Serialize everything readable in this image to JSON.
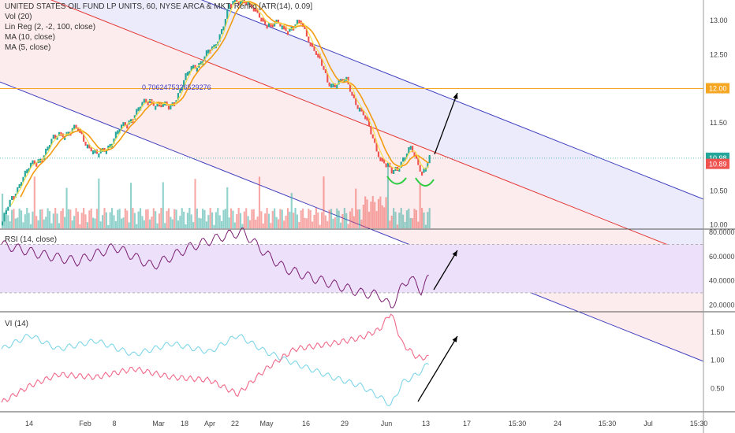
{
  "legend": {
    "title": "UNITED STATES OIL FUND LP UNITS, 60, NYSE ARCA & MKT, Renko [ATR(14), 0.09]",
    "vol": "Vol (20)",
    "linreg": "Lin Reg (2, -2, 100, close)",
    "ma10": "MA (10, close)",
    "ma5": "MA (5, close)",
    "rsi": "RSI (14, close)",
    "vi": "VI (14)"
  },
  "annotation": "0.706247532652927​6",
  "colors": {
    "up": "#26a69a",
    "down": "#ef5350",
    "ma10": "#f39c12",
    "ma5": "#f7e04b",
    "channel_blue": "#3f3fbf",
    "channel_red": "#e53935",
    "hline": "#f5a623",
    "rsi": "#7b1f72",
    "vi_plus": "#7fd6e8",
    "vi_minus": "#f06a8a",
    "arrow": "#000000",
    "neckline": "#2ecc40"
  },
  "price_labels": {
    "hline": "12.00",
    "last": "10.98",
    "prev": "10.89"
  },
  "chart_data": [
    {
      "type": "renko",
      "name": "price",
      "ylim": [
        9.95,
        13.3
      ],
      "y_ticks": [
        "10.00",
        "10.50",
        "11.00",
        "11.50",
        "12.00",
        "12.50",
        "13.00"
      ],
      "x_ticks": [
        "14",
        "Feb",
        "8",
        "Mar",
        "18",
        "Apr",
        "22",
        "May",
        "16",
        "29",
        "Jun",
        "13",
        "17",
        "15:30",
        "24",
        "15:30",
        "Jul",
        "15:30"
      ],
      "hline": 12.0,
      "last": 10.98,
      "key_points": [
        {
          "i": 0,
          "y": 10.05
        },
        {
          "i": 10,
          "y": 10.7
        },
        {
          "i": 20,
          "y": 11.0
        },
        {
          "i": 30,
          "y": 11.35
        },
        {
          "i": 40,
          "y": 11.4
        },
        {
          "i": 50,
          "y": 11.0
        },
        {
          "i": 58,
          "y": 11.25
        },
        {
          "i": 70,
          "y": 11.65
        },
        {
          "i": 78,
          "y": 11.85
        },
        {
          "i": 88,
          "y": 11.7
        },
        {
          "i": 100,
          "y": 12.3
        },
        {
          "i": 112,
          "y": 12.6
        },
        {
          "i": 120,
          "y": 13.2
        },
        {
          "i": 128,
          "y": 13.35
        },
        {
          "i": 134,
          "y": 13.1
        },
        {
          "i": 142,
          "y": 12.95
        },
        {
          "i": 150,
          "y": 12.9
        },
        {
          "i": 158,
          "y": 12.95
        },
        {
          "i": 165,
          "y": 12.6
        },
        {
          "i": 172,
          "y": 12.1
        },
        {
          "i": 182,
          "y": 12.1
        },
        {
          "i": 192,
          "y": 11.55
        },
        {
          "i": 200,
          "y": 11.0
        },
        {
          "i": 206,
          "y": 10.75
        },
        {
          "i": 212,
          "y": 11.0
        },
        {
          "i": 216,
          "y": 11.1
        },
        {
          "i": 222,
          "y": 10.8
        },
        {
          "i": 226,
          "y": 10.98
        }
      ]
    },
    {
      "type": "line",
      "name": "RSI",
      "ylim": [
        15,
        82
      ],
      "y_ticks": [
        "80.0000",
        "60.0000",
        "40.0000",
        "20.0000"
      ],
      "band": [
        30,
        70
      ],
      "key_points": [
        {
          "i": 0,
          "y": 70
        },
        {
          "i": 20,
          "y": 62
        },
        {
          "i": 40,
          "y": 56
        },
        {
          "i": 60,
          "y": 68
        },
        {
          "i": 80,
          "y": 52
        },
        {
          "i": 100,
          "y": 68
        },
        {
          "i": 120,
          "y": 78
        },
        {
          "i": 128,
          "y": 80
        },
        {
          "i": 140,
          "y": 62
        },
        {
          "i": 150,
          "y": 50
        },
        {
          "i": 165,
          "y": 42
        },
        {
          "i": 180,
          "y": 35
        },
        {
          "i": 190,
          "y": 30
        },
        {
          "i": 200,
          "y": 28
        },
        {
          "i": 206,
          "y": 18
        },
        {
          "i": 212,
          "y": 35
        },
        {
          "i": 216,
          "y": 43
        },
        {
          "i": 222,
          "y": 32
        },
        {
          "i": 226,
          "y": 42
        }
      ]
    },
    {
      "type": "line",
      "name": "VI",
      "ylim": [
        0.1,
        1.85
      ],
      "y_ticks": [
        "1.50",
        "1.00",
        "0.50"
      ],
      "series": [
        {
          "key": "plus",
          "key_points": [
            {
              "i": 0,
              "y": 1.2
            },
            {
              "i": 15,
              "y": 1.45
            },
            {
              "i": 30,
              "y": 1.2
            },
            {
              "i": 50,
              "y": 1.35
            },
            {
              "i": 70,
              "y": 1.1
            },
            {
              "i": 90,
              "y": 1.3
            },
            {
              "i": 110,
              "y": 1.15
            },
            {
              "i": 125,
              "y": 1.45
            },
            {
              "i": 140,
              "y": 1.15
            },
            {
              "i": 155,
              "y": 0.95
            },
            {
              "i": 175,
              "y": 0.7
            },
            {
              "i": 190,
              "y": 0.55
            },
            {
              "i": 200,
              "y": 0.35
            },
            {
              "i": 206,
              "y": 0.2
            },
            {
              "i": 212,
              "y": 0.6
            },
            {
              "i": 220,
              "y": 0.75
            },
            {
              "i": 226,
              "y": 0.95
            }
          ]
        },
        {
          "key": "minus",
          "key_points": [
            {
              "i": 0,
              "y": 0.25
            },
            {
              "i": 15,
              "y": 0.55
            },
            {
              "i": 30,
              "y": 0.75
            },
            {
              "i": 50,
              "y": 0.7
            },
            {
              "i": 70,
              "y": 0.85
            },
            {
              "i": 90,
              "y": 0.7
            },
            {
              "i": 110,
              "y": 0.65
            },
            {
              "i": 125,
              "y": 0.4
            },
            {
              "i": 140,
              "y": 0.85
            },
            {
              "i": 155,
              "y": 1.2
            },
            {
              "i": 175,
              "y": 1.3
            },
            {
              "i": 190,
              "y": 1.4
            },
            {
              "i": 200,
              "y": 1.55
            },
            {
              "i": 206,
              "y": 1.85
            },
            {
              "i": 212,
              "y": 1.3
            },
            {
              "i": 220,
              "y": 1.05
            },
            {
              "i": 226,
              "y": 1.05
            }
          ]
        }
      ]
    }
  ]
}
